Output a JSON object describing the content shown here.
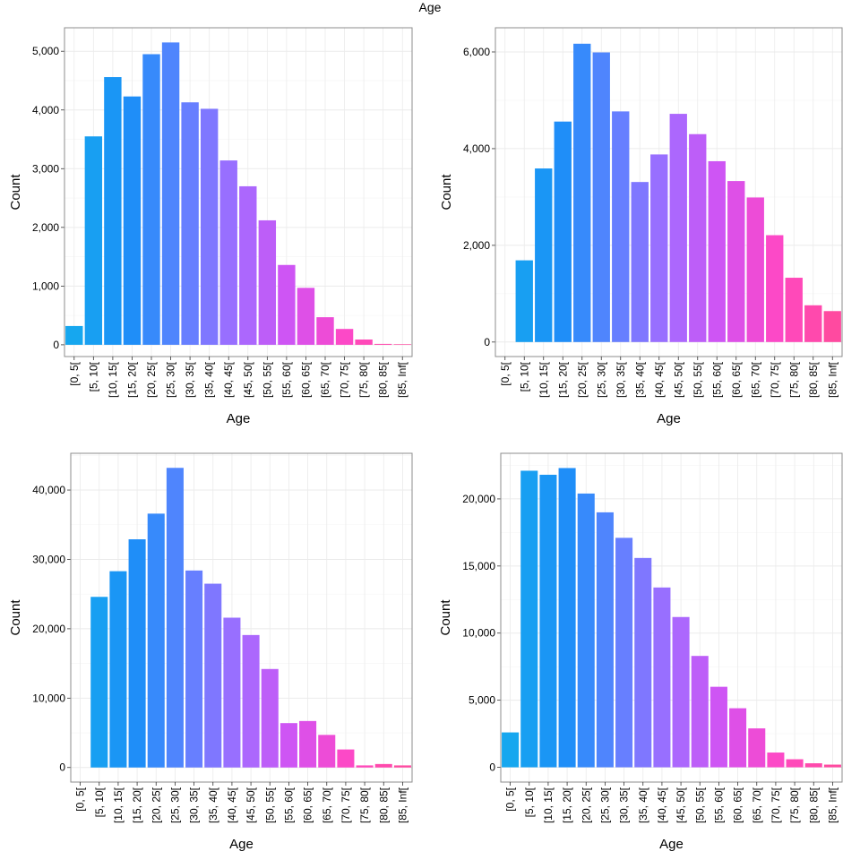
{
  "title": "Age",
  "colors": {
    "panel_border": "#8c8c8c",
    "grid_major": "#ebebeb",
    "grid_minor": "#f5f5f5",
    "bar_gradient": [
      "#16a7ef",
      "#1b8ff8",
      "#5f82ff",
      "#a46bff",
      "#d452f2",
      "#ff48c4",
      "#ff4aa0"
    ]
  },
  "chart_data": [
    {
      "type": "bar",
      "title": "",
      "xlabel": "Age",
      "ylabel": "Count",
      "categories": [
        "[0, 5[",
        "[5, 10[",
        "[10, 15[",
        "[15, 20[",
        "[20, 25[",
        "[25, 30[",
        "[30, 35[",
        "[35, 40[",
        "[40, 45[",
        "[45, 50[",
        "[50, 55[",
        "[55, 60[",
        "[60, 65[",
        "[65, 70[",
        "[70, 75[",
        "[75, 80[",
        "[80, 85[",
        "[85, Inf["
      ],
      "values": [
        320,
        3550,
        4560,
        4230,
        4950,
        5150,
        4130,
        4020,
        3140,
        2700,
        2120,
        1360,
        970,
        470,
        270,
        90,
        15,
        10
      ],
      "ylim": [
        -200,
        5400
      ],
      "yticks": [
        0,
        1000,
        2000,
        3000,
        4000,
        5000
      ],
      "ytick_labels": [
        "0",
        "1,000",
        "2,000",
        "3,000",
        "4,000",
        "5,000"
      ],
      "grid": true
    },
    {
      "type": "bar",
      "title": "",
      "xlabel": "Age",
      "ylabel": "Count",
      "categories": [
        "[0, 5[",
        "[5, 10[",
        "[10, 15[",
        "[15, 20[",
        "[20, 25[",
        "[25, 30[",
        "[30, 35[",
        "[35, 40[",
        "[40, 45[",
        "[45, 50[",
        "[50, 55[",
        "[55, 60[",
        "[60, 65[",
        "[65, 70[",
        "[70, 75[",
        "[75, 80[",
        "[80, 85[",
        "[85, Inf["
      ],
      "values": [
        0,
        1690,
        3590,
        4560,
        6170,
        5990,
        4770,
        3310,
        3880,
        4720,
        4300,
        3740,
        3330,
        2990,
        2210,
        1330,
        760,
        640
      ],
      "ylim": [
        -300,
        6500
      ],
      "yticks": [
        0,
        2000,
        4000,
        6000
      ],
      "ytick_labels": [
        "0",
        "2,000",
        "4,000",
        "6,000"
      ],
      "grid": true
    },
    {
      "type": "bar",
      "title": "",
      "xlabel": "Age",
      "ylabel": "Count",
      "categories": [
        "[0, 5[",
        "[5, 10[",
        "[10, 15[",
        "[15, 20[",
        "[20, 25[",
        "[25, 30[",
        "[30, 35[",
        "[35, 40[",
        "[40, 45[",
        "[45, 50[",
        "[50, 55[",
        "[55, 60[",
        "[60, 65[",
        "[65, 70[",
        "[70, 75[",
        "[75, 80[",
        "[80, 85[",
        "[85, Inf["
      ],
      "values": [
        0,
        24600,
        28300,
        32900,
        36600,
        43200,
        28400,
        26500,
        21600,
        19100,
        14200,
        6400,
        6700,
        4700,
        2600,
        300,
        500,
        300
      ],
      "ylim": [
        -2100,
        45300
      ],
      "yticks": [
        0,
        10000,
        20000,
        30000,
        40000
      ],
      "ytick_labels": [
        "0",
        "10,000",
        "20,000",
        "30,000",
        "40,000"
      ],
      "grid": true
    },
    {
      "type": "bar",
      "title": "",
      "xlabel": "Age",
      "ylabel": "Count",
      "categories": [
        "[0, 5[",
        "[5, 10[",
        "[10, 15[",
        "[15, 20[",
        "[20, 25[",
        "[25, 30[",
        "[30, 35[",
        "[35, 40[",
        "[40, 45[",
        "[45, 50[",
        "[50, 55[",
        "[55, 60[",
        "[60, 65[",
        "[65, 70[",
        "[70, 75[",
        "[75, 80[",
        "[80, 85[",
        "[85, Inf["
      ],
      "values": [
        2600,
        22100,
        21800,
        22300,
        20400,
        19000,
        17100,
        15600,
        13400,
        11200,
        8300,
        6000,
        4400,
        2900,
        1100,
        600,
        300,
        200
      ],
      "ylim": [
        -1100,
        23400
      ],
      "yticks": [
        0,
        5000,
        10000,
        15000,
        20000
      ],
      "ytick_labels": [
        "0",
        "5,000",
        "10,000",
        "15,000",
        "20,000"
      ],
      "grid": true
    }
  ]
}
